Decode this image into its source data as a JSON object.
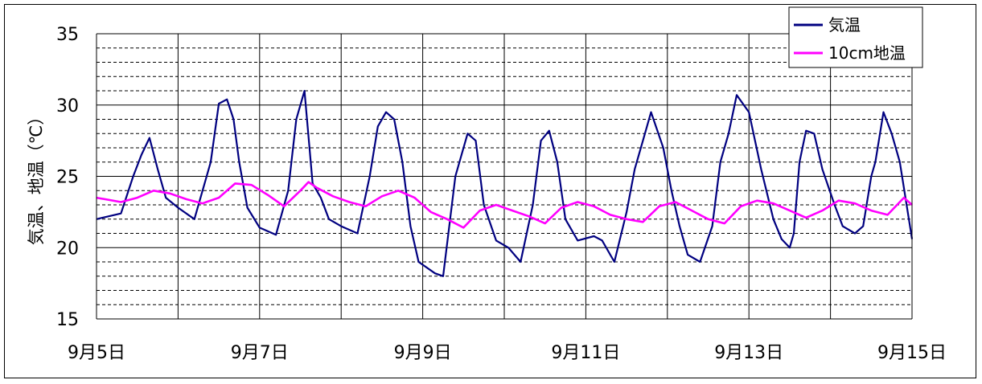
{
  "chart_data": {
    "type": "line",
    "ylabel": "気温、地温（℃）",
    "ylim": [
      15,
      35
    ],
    "y_ticks": [
      "15",
      "20",
      "25",
      "30",
      "35"
    ],
    "xlim": [
      0,
      10
    ],
    "x_ticks": [
      "9月5日",
      "9月7日",
      "9月9日",
      "9月11日",
      "9月13日",
      "9月15日"
    ],
    "x_tick_positions": [
      0,
      2,
      4,
      6,
      8,
      10
    ],
    "grid": true,
    "legend": "top-right",
    "series": [
      {
        "name": "気温",
        "color": "#000080",
        "x": [
          0,
          0.3,
          0.45,
          0.55,
          0.65,
          0.75,
          0.85,
          1.0,
          1.2,
          1.4,
          1.5,
          1.6,
          1.68,
          1.75,
          1.85,
          2.0,
          2.2,
          2.35,
          2.45,
          2.55,
          2.65,
          2.75,
          2.85,
          3.0,
          3.2,
          3.35,
          3.45,
          3.55,
          3.65,
          3.75,
          3.85,
          3.95,
          4.15,
          4.25,
          4.4,
          4.55,
          4.65,
          4.75,
          4.9,
          5.05,
          5.2,
          5.35,
          5.45,
          5.55,
          5.65,
          5.75,
          5.9,
          6.1,
          6.2,
          6.35,
          6.5,
          6.6,
          6.7,
          6.8,
          6.95,
          7.05,
          7.15,
          7.25,
          7.4,
          7.55,
          7.65,
          7.75,
          7.85,
          8.0,
          8.15,
          8.3,
          8.4,
          8.5,
          8.55,
          8.62,
          8.7,
          8.8,
          8.9,
          9.05,
          9.15,
          9.3,
          9.4,
          9.5,
          9.55,
          9.65,
          9.75,
          9.85,
          10.0
        ],
        "y": [
          22.0,
          22.4,
          25.0,
          26.5,
          27.7,
          25.5,
          23.5,
          22.8,
          22.0,
          26.0,
          30.1,
          30.4,
          29.0,
          26.0,
          22.8,
          21.4,
          20.9,
          24.0,
          29.0,
          31.0,
          24.5,
          23.5,
          22.0,
          21.5,
          21.0,
          25.0,
          28.5,
          29.5,
          29.0,
          26.0,
          21.5,
          19.0,
          18.2,
          18.0,
          25.0,
          28.0,
          27.5,
          23.0,
          20.5,
          20.0,
          19.0,
          23.0,
          27.5,
          28.2,
          26.0,
          22.0,
          20.5,
          20.8,
          20.5,
          19.0,
          22.5,
          25.5,
          27.5,
          29.5,
          27.0,
          24.0,
          21.5,
          19.5,
          19.0,
          21.5,
          26.0,
          28.0,
          30.7,
          29.5,
          25.5,
          22.0,
          20.6,
          20.0,
          21.0,
          26.0,
          28.2,
          28.0,
          25.5,
          23.0,
          21.5,
          21.0,
          21.5,
          25.0,
          26.0,
          29.5,
          28.0,
          26.0,
          20.6
        ]
      },
      {
        "name": "10cm地温",
        "color": "#ff00ff",
        "x": [
          0,
          0.3,
          0.5,
          0.7,
          0.9,
          1.1,
          1.3,
          1.5,
          1.7,
          1.9,
          2.1,
          2.3,
          2.5,
          2.6,
          2.7,
          2.9,
          3.1,
          3.3,
          3.5,
          3.7,
          3.9,
          4.1,
          4.3,
          4.5,
          4.7,
          4.9,
          5.1,
          5.3,
          5.5,
          5.7,
          5.9,
          6.1,
          6.3,
          6.5,
          6.7,
          6.9,
          7.1,
          7.3,
          7.5,
          7.7,
          7.9,
          8.1,
          8.3,
          8.5,
          8.7,
          8.9,
          9.1,
          9.3,
          9.5,
          9.7,
          9.9,
          10.0
        ],
        "y": [
          23.5,
          23.2,
          23.5,
          24.0,
          23.8,
          23.4,
          23.1,
          23.5,
          24.5,
          24.4,
          23.7,
          22.9,
          24.0,
          24.6,
          24.2,
          23.6,
          23.2,
          22.9,
          23.6,
          24.0,
          23.5,
          22.5,
          22.0,
          21.4,
          22.6,
          23.0,
          22.6,
          22.2,
          21.7,
          22.8,
          23.2,
          22.9,
          22.3,
          22.0,
          21.8,
          22.9,
          23.2,
          22.6,
          22.0,
          21.7,
          22.9,
          23.3,
          23.1,
          22.6,
          22.1,
          22.6,
          23.3,
          23.1,
          22.6,
          22.3,
          23.5,
          23.0
        ]
      }
    ]
  }
}
